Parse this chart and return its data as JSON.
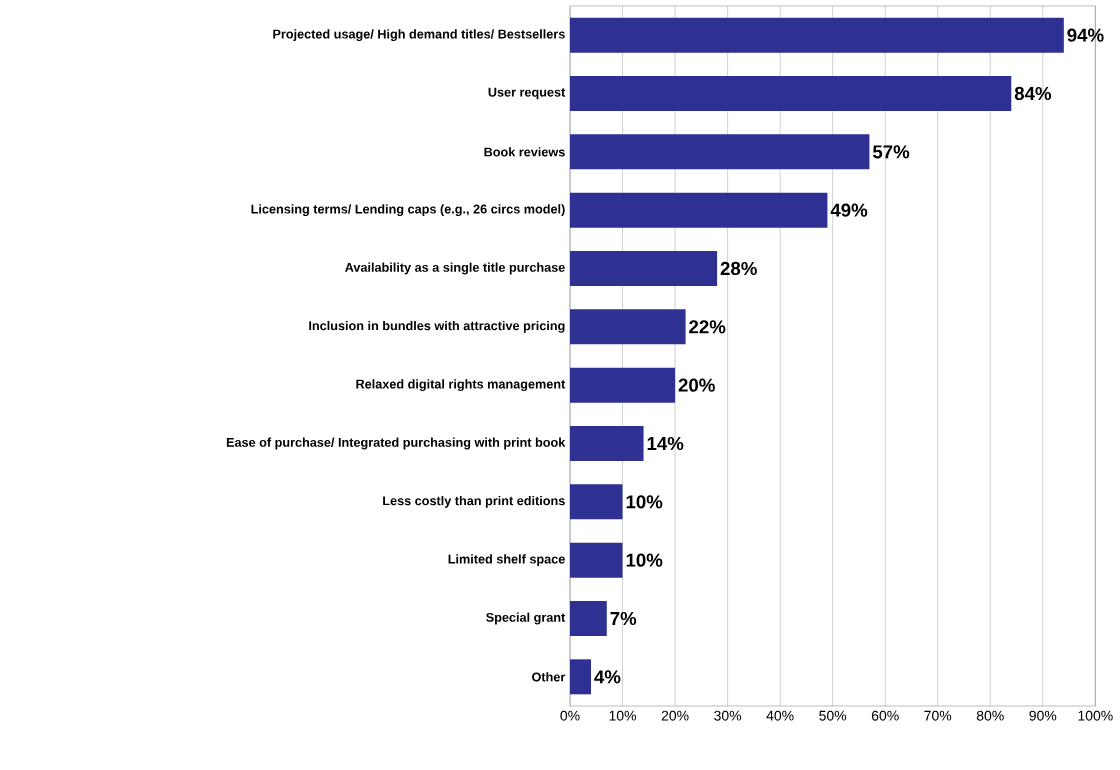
{
  "chart_data": {
    "type": "bar",
    "orientation": "horizontal",
    "categories": [
      "Projected usage/ High demand titles/ Bestsellers",
      "User request",
      "Book reviews",
      "Licensing terms/ Lending caps (e.g., 26 circs model)",
      "Availability as a single title purchase",
      "Inclusion in bundles with attractive pricing",
      "Relaxed digital rights management",
      "Ease of purchase/ Integrated purchasing with print book",
      "Less costly than print editions",
      "Limited shelf space",
      "Special grant",
      "Other"
    ],
    "values": [
      94,
      84,
      57,
      49,
      28,
      22,
      20,
      14,
      10,
      10,
      7,
      4
    ],
    "value_labels": [
      "94%",
      "84%",
      "57%",
      "49%",
      "28%",
      "22%",
      "20%",
      "14%",
      "10%",
      "10%",
      "7%",
      "4%"
    ],
    "color": "#2e3192",
    "xlim": [
      0,
      100
    ],
    "xticks": [
      {
        "value": 0,
        "label": "0%"
      },
      {
        "value": 10,
        "label": "10%"
      },
      {
        "value": 20,
        "label": "20%"
      },
      {
        "value": 30,
        "label": "30%"
      },
      {
        "value": 40,
        "label": "40%"
      },
      {
        "value": 50,
        "label": "50%"
      },
      {
        "value": 60,
        "label": "60%"
      },
      {
        "value": 70,
        "label": "70%"
      },
      {
        "value": 80,
        "label": "80%"
      },
      {
        "value": 90,
        "label": "90%"
      },
      {
        "value": 100,
        "label": "100%"
      }
    ],
    "grid": "x"
  }
}
